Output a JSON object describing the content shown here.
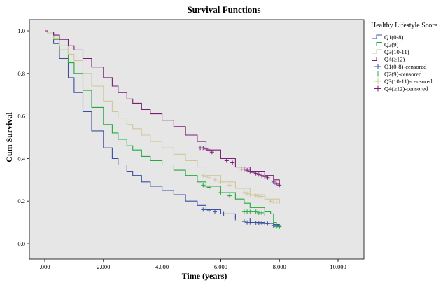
{
  "chart_data": {
    "type": "line",
    "title": "Survival Functions",
    "xlabel": "Time (years)",
    "ylabel": "Cum Survival",
    "xlim": [
      0,
      10
    ],
    "ylim": [
      0,
      1
    ],
    "x_ticks": [
      ".000",
      "2.000",
      "4.000",
      "6.000",
      "8.000",
      "10.000"
    ],
    "y_ticks": [
      "0.0",
      "0.2",
      "0.4",
      "0.6",
      "0.8",
      "1.0"
    ],
    "grid": false,
    "step": true,
    "background": "#e6e6e6",
    "legend": {
      "title": "Healthy Lifestyle Score",
      "position": "right",
      "entries": [
        {
          "label": "Q1(0-8)",
          "color": "#3a4fa0",
          "kind": "line"
        },
        {
          "label": "Q2(9)",
          "color": "#22aa3f",
          "kind": "line"
        },
        {
          "label": "Q3(10-11)",
          "color": "#cfc79a",
          "kind": "line"
        },
        {
          "label": "Q4(≥12)",
          "color": "#7b1d74",
          "kind": "line"
        },
        {
          "label": "Q1(0-8)-censored",
          "color": "#3a4fa0",
          "kind": "cross"
        },
        {
          "label": "Q2(9)-censored",
          "color": "#22aa3f",
          "kind": "cross"
        },
        {
          "label": "Q3(10-11)-censored",
          "color": "#cfc79a",
          "kind": "cross"
        },
        {
          "label": "Q4(≥12)-censored",
          "color": "#7b1d74",
          "kind": "cross"
        }
      ]
    },
    "series": [
      {
        "name": "Q1(0-8)",
        "color": "#3a4fa0",
        "x": [
          0,
          0.1,
          0.3,
          0.5,
          0.8,
          1.0,
          1.3,
          1.6,
          2.0,
          2.3,
          2.5,
          2.8,
          3.0,
          3.3,
          3.6,
          4.0,
          4.4,
          4.8,
          5.2,
          5.5,
          6.0,
          6.5,
          7.0,
          7.5,
          7.8,
          8.0
        ],
        "y": [
          1.0,
          0.99,
          0.94,
          0.87,
          0.78,
          0.71,
          0.62,
          0.53,
          0.45,
          0.4,
          0.37,
          0.34,
          0.32,
          0.29,
          0.27,
          0.25,
          0.23,
          0.2,
          0.18,
          0.16,
          0.14,
          0.12,
          0.1,
          0.095,
          0.09,
          0.08
        ],
        "censored_x": [
          5.4,
          5.5,
          5.6,
          5.8,
          6.1,
          6.5,
          6.8,
          6.9,
          7.0,
          7.1,
          7.2,
          7.3,
          7.4,
          7.5,
          7.6,
          7.8,
          7.9,
          8.0
        ],
        "censored_y": [
          0.16,
          0.16,
          0.155,
          0.15,
          0.14,
          0.12,
          0.105,
          0.1,
          0.1,
          0.098,
          0.097,
          0.096,
          0.095,
          0.095,
          0.094,
          0.085,
          0.085,
          0.082
        ]
      },
      {
        "name": "Q2(9)",
        "color": "#22aa3f",
        "x": [
          0,
          0.1,
          0.3,
          0.5,
          0.8,
          1.0,
          1.3,
          1.6,
          2.0,
          2.3,
          2.5,
          2.8,
          3.0,
          3.3,
          3.6,
          4.0,
          4.4,
          4.8,
          5.2,
          5.5,
          6.0,
          6.5,
          6.8,
          7.0,
          7.5,
          7.7,
          7.8,
          7.9,
          8.0
        ],
        "y": [
          1.0,
          0.99,
          0.96,
          0.91,
          0.85,
          0.8,
          0.72,
          0.64,
          0.56,
          0.52,
          0.49,
          0.46,
          0.44,
          0.41,
          0.39,
          0.37,
          0.345,
          0.32,
          0.29,
          0.27,
          0.24,
          0.21,
          0.19,
          0.17,
          0.15,
          0.14,
          0.1,
          0.08,
          0.07
        ],
        "censored_x": [
          5.4,
          5.5,
          5.6,
          6.0,
          6.3,
          6.8,
          6.9,
          7.0,
          7.1,
          7.2,
          7.3,
          7.4,
          7.5,
          7.9,
          8.0
        ],
        "censored_y": [
          0.275,
          0.27,
          0.265,
          0.24,
          0.225,
          0.15,
          0.15,
          0.15,
          0.15,
          0.15,
          0.145,
          0.145,
          0.14,
          0.08,
          0.08
        ]
      },
      {
        "name": "Q3(10-11)",
        "color": "#cfc79a",
        "x": [
          0,
          0.1,
          0.3,
          0.5,
          0.8,
          1.0,
          1.3,
          1.6,
          2.0,
          2.3,
          2.5,
          2.8,
          3.0,
          3.3,
          3.6,
          4.0,
          4.4,
          4.8,
          5.2,
          5.5,
          6.0,
          6.5,
          7.0,
          7.5,
          8.0
        ],
        "y": [
          1.0,
          0.99,
          0.965,
          0.93,
          0.89,
          0.86,
          0.8,
          0.74,
          0.67,
          0.62,
          0.59,
          0.56,
          0.54,
          0.51,
          0.48,
          0.45,
          0.42,
          0.39,
          0.36,
          0.32,
          0.29,
          0.26,
          0.23,
          0.21,
          0.19
        ],
        "censored_x": [
          5.4,
          5.5,
          5.6,
          5.8,
          6.0,
          6.3,
          6.8,
          6.9,
          7.0,
          7.1,
          7.2,
          7.3,
          7.4,
          7.5,
          7.7,
          7.8,
          7.9,
          8.0
        ],
        "censored_y": [
          0.32,
          0.315,
          0.31,
          0.3,
          0.29,
          0.275,
          0.24,
          0.235,
          0.23,
          0.228,
          0.225,
          0.223,
          0.222,
          0.22,
          0.2,
          0.195,
          0.195,
          0.195
        ]
      },
      {
        "name": "Q4(≥12)",
        "color": "#7b1d74",
        "x": [
          0,
          0.1,
          0.3,
          0.5,
          0.8,
          1.0,
          1.3,
          1.6,
          2.0,
          2.3,
          2.5,
          2.8,
          3.0,
          3.3,
          3.6,
          4.0,
          4.4,
          4.8,
          5.2,
          5.5,
          6.0,
          6.5,
          7.0,
          7.5,
          7.8,
          8.0
        ],
        "y": [
          1.0,
          0.995,
          0.98,
          0.96,
          0.93,
          0.91,
          0.87,
          0.83,
          0.78,
          0.74,
          0.71,
          0.68,
          0.66,
          0.63,
          0.61,
          0.58,
          0.55,
          0.51,
          0.48,
          0.44,
          0.4,
          0.36,
          0.34,
          0.32,
          0.3,
          0.27
        ],
        "censored_x": [
          5.3,
          5.4,
          5.5,
          5.6,
          5.7,
          6.2,
          6.4,
          6.7,
          6.8,
          6.9,
          7.0,
          7.1,
          7.2,
          7.3,
          7.4,
          7.5,
          7.6,
          7.8,
          7.9,
          8.0
        ],
        "censored_y": [
          0.45,
          0.45,
          0.445,
          0.44,
          0.43,
          0.39,
          0.38,
          0.35,
          0.35,
          0.345,
          0.34,
          0.335,
          0.33,
          0.325,
          0.32,
          0.315,
          0.31,
          0.29,
          0.28,
          0.275
        ]
      }
    ]
  }
}
